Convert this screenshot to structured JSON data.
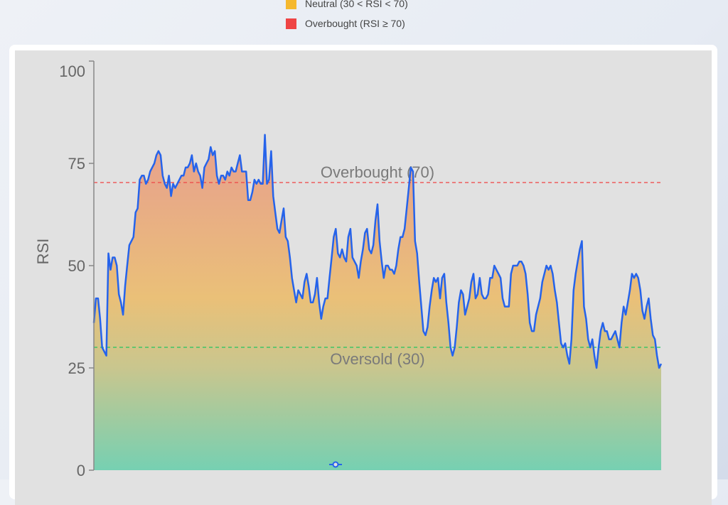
{
  "legend": {
    "items": [
      {
        "label": "Neutral (30 < RSI < 70)",
        "color": "#f5b82e"
      },
      {
        "label": "Overbought (RSI ≥ 70)",
        "color": "#ef4444"
      }
    ]
  },
  "chart_data": {
    "type": "area",
    "title": "",
    "xlabel": "",
    "ylabel": "RSI",
    "ylim": [
      0,
      100
    ],
    "yticks": [
      0,
      25,
      50,
      75,
      100
    ],
    "grid": false,
    "line_color": "#2563eb",
    "fill_gradient": {
      "top": "#e8a090",
      "middle": "#e9c07a",
      "bottom": "#7ccfb0"
    },
    "reference_lines": [
      {
        "value": 70,
        "label": "Overbought (70)",
        "color": "#ef4444",
        "style": "dashed"
      },
      {
        "value": 30,
        "label": "Oversold (30)",
        "color": "#22c55e",
        "style": "dashed"
      }
    ],
    "values": [
      36,
      42,
      42,
      37,
      30,
      29,
      28,
      53,
      49,
      52,
      52,
      50,
      43,
      41,
      38,
      45,
      50,
      55,
      56,
      57,
      63,
      64,
      71,
      72,
      72,
      70,
      71,
      73,
      74,
      75,
      77,
      78,
      77,
      72,
      70,
      69,
      72,
      67,
      70,
      69,
      70,
      71,
      72,
      72,
      74,
      74,
      75,
      77,
      73,
      75,
      73,
      72,
      69,
      74,
      75,
      76,
      79,
      77,
      78,
      72,
      70,
      72,
      72,
      71,
      73,
      72,
      74,
      73,
      73,
      75,
      77,
      73,
      73,
      73,
      66,
      66,
      68,
      71,
      70,
      71,
      70,
      70,
      82,
      70,
      71,
      78,
      67,
      63,
      59,
      58,
      61,
      64,
      57,
      56,
      52,
      47,
      44,
      41,
      44,
      43,
      42,
      46,
      48,
      45,
      41,
      41,
      43,
      47,
      41,
      37,
      40,
      42,
      42,
      47,
      52,
      57,
      59,
      53,
      52,
      54,
      52,
      51,
      57,
      59,
      52,
      51,
      50,
      47,
      51,
      54,
      58,
      59,
      54,
      53,
      55,
      61,
      65,
      56,
      51,
      47,
      50,
      50,
      49,
      49,
      48,
      50,
      54,
      57,
      57,
      59,
      64,
      69,
      74,
      73,
      56,
      53,
      46,
      40,
      34,
      33,
      35,
      40,
      44,
      47,
      46,
      47,
      42,
      47,
      48,
      41,
      36,
      30,
      28,
      30,
      35,
      41,
      44,
      43,
      38,
      40,
      42,
      46,
      48,
      42,
      43,
      47,
      43,
      42,
      42,
      43,
      47,
      47,
      50,
      49,
      48,
      47,
      42,
      40,
      40,
      40,
      48,
      50,
      50,
      50,
      51,
      51,
      50,
      48,
      43,
      36,
      34,
      34,
      38,
      40,
      42,
      46,
      48,
      50,
      49,
      50,
      48,
      44,
      41,
      36,
      31,
      30,
      31,
      28,
      26,
      32,
      44,
      48,
      51,
      54,
      56,
      40,
      37,
      32,
      30,
      32,
      28,
      25,
      30,
      34,
      36,
      34,
      34,
      32,
      32,
      33,
      34,
      32,
      30,
      36,
      40,
      38,
      41,
      44,
      48,
      47,
      48,
      47,
      44,
      39,
      37,
      40,
      42,
      37,
      33,
      32,
      28,
      25,
      26
    ]
  },
  "range_slider_handle": {
    "icon": "slider-handle-icon"
  }
}
